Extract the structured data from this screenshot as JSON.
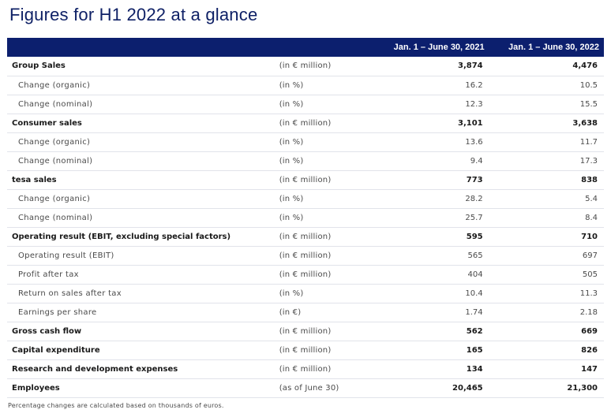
{
  "title": "Figures for H1 2022 at a glance",
  "table": {
    "header": {
      "col1": "Jan. 1 – June 30, 2021",
      "col2": "Jan. 1 – June 30, 2022"
    },
    "rows": [
      {
        "label": "Group Sales",
        "unit": "(in € million)",
        "v2021": "3,874",
        "v2022": "4,476",
        "bold": true
      },
      {
        "label": "Change (organic)",
        "unit": "(in %)",
        "v2021": "16.2",
        "v2022": "10.5",
        "bold": false
      },
      {
        "label": "Change (nominal)",
        "unit": "(in %)",
        "v2021": "12.3",
        "v2022": "15.5",
        "bold": false
      },
      {
        "label": "Consumer sales",
        "unit": "(in € million)",
        "v2021": "3,101",
        "v2022": "3,638",
        "bold": true
      },
      {
        "label": "Change (organic)",
        "unit": "(in %)",
        "v2021": "13.6",
        "v2022": "11.7",
        "bold": false
      },
      {
        "label": "Change (nominal)",
        "unit": "(in %)",
        "v2021": "9.4",
        "v2022": "17.3",
        "bold": false
      },
      {
        "label": "tesa sales",
        "unit": "(in € million)",
        "v2021": "773",
        "v2022": "838",
        "bold": true
      },
      {
        "label": "Change (organic)",
        "unit": "(in %)",
        "v2021": "28.2",
        "v2022": "5.4",
        "bold": false
      },
      {
        "label": "Change (nominal)",
        "unit": "(in %)",
        "v2021": "25.7",
        "v2022": "8.4",
        "bold": false
      },
      {
        "label": "Operating result (EBIT, excluding special factors)",
        "unit": "(in € million)",
        "v2021": "595",
        "v2022": "710",
        "bold": true
      },
      {
        "label": "Operating result (EBIT)",
        "unit": "(in € million)",
        "v2021": "565",
        "v2022": "697",
        "bold": false
      },
      {
        "label": "Profit after tax",
        "unit": "(in € million)",
        "v2021": "404",
        "v2022": "505",
        "bold": false
      },
      {
        "label": "Return on sales after tax",
        "unit": "(in %)",
        "v2021": "10.4",
        "v2022": "11.3",
        "bold": false
      },
      {
        "label": "Earnings per share",
        "unit": "(in €)",
        "v2021": "1.74",
        "v2022": "2.18",
        "bold": false
      },
      {
        "label": "Gross cash flow",
        "unit": "(in € million)",
        "v2021": "562",
        "v2022": "669",
        "bold": true
      },
      {
        "label": "Capital expenditure",
        "unit": "(in € million)",
        "v2021": "165",
        "v2022": "826",
        "bold": true
      },
      {
        "label": "Research and development expenses",
        "unit": "(in € million)",
        "v2021": "134",
        "v2022": "147",
        "bold": true
      },
      {
        "label": "Employees",
        "unit": "(as of June 30)",
        "v2021": "20,465",
        "v2022": "21,300",
        "bold": true
      }
    ]
  },
  "footnote": "Percentage changes are calculated based on thousands of euros.",
  "colors": {
    "title": "#0f2166",
    "header_bg": "#0c1f6e",
    "header_text": "#ffffff",
    "row_border": "#e1e3ea"
  }
}
